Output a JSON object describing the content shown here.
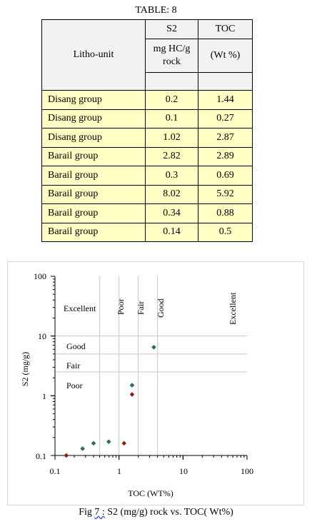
{
  "table": {
    "caption": "TABLE: 8",
    "headers": {
      "litho": "Litho-unit",
      "s2": "S2",
      "s2_unit_line1": "mg HC/g",
      "s2_unit_line2": "rock",
      "toc": "TOC",
      "toc_unit": "(Wt %)"
    },
    "rows": [
      {
        "unit": "Disang group",
        "s2": "0.2",
        "toc": "1.44"
      },
      {
        "unit": "Disang group",
        "s2": "0.1",
        "toc": "0.27"
      },
      {
        "unit": "Disang group",
        "s2": "1.02",
        "toc": "2.87"
      },
      {
        "unit": "Barail group",
        "s2": "2.82",
        "toc": "2.89"
      },
      {
        "unit": "Barail group",
        "s2": "0.3",
        "toc": "0.69"
      },
      {
        "unit": "Barail group",
        "s2": "8.02",
        "toc": "5.92"
      },
      {
        "unit": "Barail group",
        "s2": "0.34",
        "toc": "0.88"
      },
      {
        "unit": "Barail group",
        "s2": "0.14",
        "toc": "0.5"
      }
    ],
    "row_bg": "#ffffc4",
    "header_bg": "#f2f2f2"
  },
  "chart_data": {
    "type": "scatter",
    "xlabel": "TOC (WT%)",
    "ylabel": "S2 (mg/g)",
    "xscale": "log",
    "yscale": "log",
    "xlim": [
      0.1,
      100
    ],
    "ylim": [
      0.1,
      100
    ],
    "x_tick_labels": [
      "0.1",
      "1",
      "10",
      "100"
    ],
    "y_tick_labels": [
      "100",
      "10",
      "1",
      "0.1"
    ],
    "region_labels": {
      "s2_classes": [
        "Excellent",
        "Good",
        "Fair",
        "Poor"
      ],
      "toc_classes": [
        "Poor",
        "Fair",
        "Good",
        "Excellent"
      ]
    },
    "series": [
      {
        "color": "#1f7a5a",
        "points": [
          [
            0.27,
            0.13
          ],
          [
            0.4,
            0.16
          ],
          [
            0.69,
            0.17
          ],
          [
            1.6,
            1.5
          ],
          [
            3.5,
            6.5
          ]
        ]
      },
      {
        "color": "#a31515",
        "points": [
          [
            0.15,
            0.1
          ],
          [
            1.2,
            0.16
          ],
          [
            1.6,
            1.05
          ]
        ]
      }
    ]
  },
  "figure_caption": {
    "prefix": "Fig ",
    "num": "7 :",
    "rest": " S2 (mg/g) rock vs. TOC( Wt%)"
  }
}
